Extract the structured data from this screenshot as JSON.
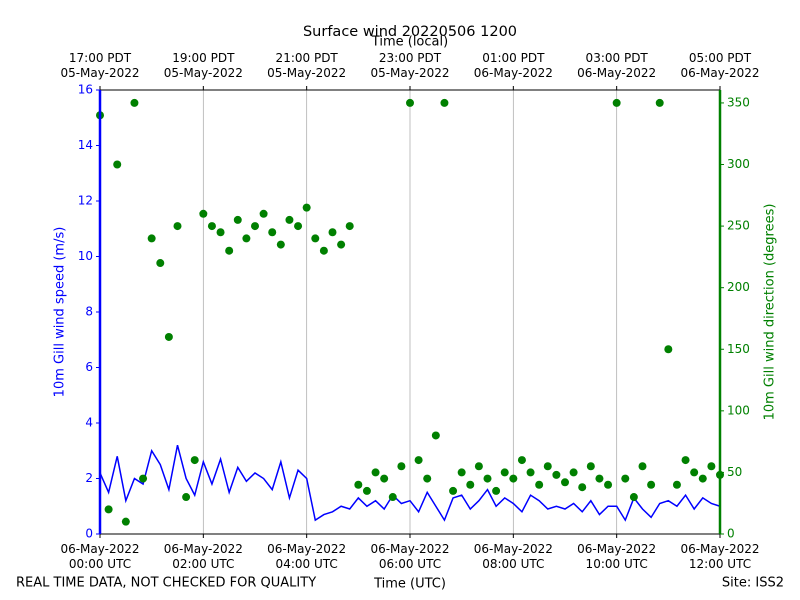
{
  "chart_data": {
    "type": "line-scatter",
    "title": "Surface wind 20220506 1200",
    "x2_label": "Time (local)",
    "x_label": "Time (UTC)",
    "y_label": "10m Gill wind speed (m/s)",
    "y2_label": "10m Gill wind direction (degrees)",
    "footer_left": "REAL TIME DATA, NOT CHECKED FOR QUALITY",
    "footer_right": "Site: ISS2",
    "grid": true,
    "xlim": [
      "2022-05-06 00:00",
      "2022-05-06 12:00"
    ],
    "xticks": [
      {
        "value": "2022-05-06 00:00",
        "label": "06-May-2022\n00:00 UTC"
      },
      {
        "value": "2022-05-06 02:00",
        "label": "06-May-2022\n02:00 UTC"
      },
      {
        "value": "2022-05-06 04:00",
        "label": "06-May-2022\n04:00 UTC"
      },
      {
        "value": "2022-05-06 06:00",
        "label": "06-May-2022\n06:00 UTC"
      },
      {
        "value": "2022-05-06 08:00",
        "label": "06-May-2022\n08:00 UTC"
      },
      {
        "value": "2022-05-06 10:00",
        "label": "06-May-2022\n10:00 UTC"
      },
      {
        "value": "2022-05-06 12:00",
        "label": "06-May-2022\n12:00 UTC"
      }
    ],
    "x2ticks": [
      {
        "value": "2022-05-06 00:00",
        "label": "17:00 PDT\n05-May-2022"
      },
      {
        "value": "2022-05-06 02:00",
        "label": "19:00 PDT\n05-May-2022"
      },
      {
        "value": "2022-05-06 04:00",
        "label": "21:00 PDT\n05-May-2022"
      },
      {
        "value": "2022-05-06 06:00",
        "label": "23:00 PDT\n05-May-2022"
      },
      {
        "value": "2022-05-06 08:00",
        "label": "01:00 PDT\n06-May-2022"
      },
      {
        "value": "2022-05-06 10:00",
        "label": "03:00 PDT\n06-May-2022"
      },
      {
        "value": "2022-05-06 12:00",
        "label": "05:00 PDT\n06-May-2022"
      }
    ],
    "ylim": [
      0,
      16
    ],
    "yticks": [
      0,
      2,
      4,
      6,
      8,
      10,
      12,
      14,
      16
    ],
    "y2lim": [
      0,
      360.5
    ],
    "y2ticks": [
      0,
      50,
      100,
      150,
      200,
      250,
      300,
      350
    ],
    "x": [
      "2022-05-06 00:00",
      "2022-05-06 00:10",
      "2022-05-06 00:20",
      "2022-05-06 00:30",
      "2022-05-06 00:40",
      "2022-05-06 00:50",
      "2022-05-06 01:00",
      "2022-05-06 01:10",
      "2022-05-06 01:20",
      "2022-05-06 01:30",
      "2022-05-06 01:40",
      "2022-05-06 01:50",
      "2022-05-06 02:00",
      "2022-05-06 02:10",
      "2022-05-06 02:20",
      "2022-05-06 02:30",
      "2022-05-06 02:40",
      "2022-05-06 02:50",
      "2022-05-06 03:00",
      "2022-05-06 03:10",
      "2022-05-06 03:20",
      "2022-05-06 03:30",
      "2022-05-06 03:40",
      "2022-05-06 03:50",
      "2022-05-06 04:00",
      "2022-05-06 04:10",
      "2022-05-06 04:20",
      "2022-05-06 04:30",
      "2022-05-06 04:40",
      "2022-05-06 04:50",
      "2022-05-06 05:00",
      "2022-05-06 05:10",
      "2022-05-06 05:20",
      "2022-05-06 05:30",
      "2022-05-06 05:40",
      "2022-05-06 05:50",
      "2022-05-06 06:00",
      "2022-05-06 06:10",
      "2022-05-06 06:20",
      "2022-05-06 06:30",
      "2022-05-06 06:40",
      "2022-05-06 06:50",
      "2022-05-06 07:00",
      "2022-05-06 07:10",
      "2022-05-06 07:20",
      "2022-05-06 07:30",
      "2022-05-06 07:40",
      "2022-05-06 07:50",
      "2022-05-06 08:00",
      "2022-05-06 08:10",
      "2022-05-06 08:20",
      "2022-05-06 08:30",
      "2022-05-06 08:40",
      "2022-05-06 08:50",
      "2022-05-06 09:00",
      "2022-05-06 09:10",
      "2022-05-06 09:20",
      "2022-05-06 09:30",
      "2022-05-06 09:40",
      "2022-05-06 09:50",
      "2022-05-06 10:00",
      "2022-05-06 10:10",
      "2022-05-06 10:20",
      "2022-05-06 10:30",
      "2022-05-06 10:40",
      "2022-05-06 10:50",
      "2022-05-06 11:00",
      "2022-05-06 11:10",
      "2022-05-06 11:20",
      "2022-05-06 11:30",
      "2022-05-06 11:40",
      "2022-05-06 11:50",
      "2022-05-06 12:00"
    ],
    "series": [
      {
        "name": "10m Gill wind speed (m/s)",
        "color": "#0000ff",
        "values": [
          2.2,
          1.5,
          2.8,
          1.2,
          2.0,
          1.8,
          3.0,
          2.5,
          1.6,
          3.2,
          2.0,
          1.4,
          2.6,
          1.8,
          2.7,
          1.5,
          2.4,
          1.9,
          2.2,
          2.0,
          1.6,
          2.6,
          1.3,
          2.3,
          2.0,
          0.5,
          0.7,
          0.8,
          1.0,
          0.9,
          1.3,
          1.0,
          1.2,
          0.9,
          1.4,
          1.1,
          1.2,
          0.8,
          1.5,
          1.0,
          0.5,
          1.3,
          1.4,
          0.9,
          1.2,
          1.6,
          1.0,
          1.3,
          1.1,
          0.8,
          1.4,
          1.2,
          0.9,
          1.0,
          0.9,
          1.1,
          0.8,
          1.2,
          0.7,
          1.0,
          1.0,
          0.5,
          1.3,
          0.9,
          0.6,
          1.1,
          1.2,
          1.0,
          1.4,
          0.9,
          1.3,
          1.1,
          1.0
        ]
      },
      {
        "name": "10m Gill wind direction (degrees)",
        "color": "#008000",
        "axis": "y2",
        "values": [
          340,
          20,
          300,
          10,
          350,
          45,
          240,
          220,
          160,
          250,
          30,
          60,
          260,
          250,
          245,
          230,
          255,
          240,
          250,
          260,
          245,
          235,
          255,
          250,
          265,
          240,
          230,
          245,
          235,
          250,
          40,
          35,
          50,
          45,
          30,
          55,
          350,
          60,
          45,
          80,
          350,
          35,
          50,
          40,
          55,
          45,
          35,
          50,
          45,
          60,
          50,
          40,
          55,
          48,
          42,
          50,
          38,
          55,
          45,
          40,
          350,
          45,
          30,
          55,
          40,
          350,
          150,
          40,
          60,
          50,
          45,
          55,
          48
        ]
      }
    ]
  }
}
